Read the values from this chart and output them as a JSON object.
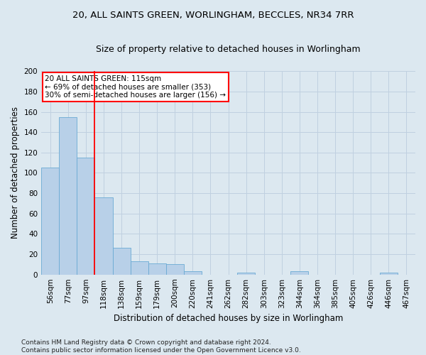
{
  "title_line1": "20, ALL SAINTS GREEN, WORLINGHAM, BECCLES, NR34 7RR",
  "title_line2": "Size of property relative to detached houses in Worlingham",
  "xlabel": "Distribution of detached houses by size in Worlingham",
  "ylabel": "Number of detached properties",
  "categories": [
    "56sqm",
    "77sqm",
    "97sqm",
    "118sqm",
    "138sqm",
    "159sqm",
    "179sqm",
    "200sqm",
    "220sqm",
    "241sqm",
    "262sqm",
    "282sqm",
    "303sqm",
    "323sqm",
    "344sqm",
    "364sqm",
    "385sqm",
    "405sqm",
    "426sqm",
    "446sqm",
    "467sqm"
  ],
  "values": [
    105,
    155,
    115,
    76,
    26,
    13,
    11,
    10,
    3,
    0,
    0,
    2,
    0,
    0,
    3,
    0,
    0,
    0,
    0,
    2,
    0
  ],
  "bar_color": "#b8d0e8",
  "bar_edge_color": "#6aaad4",
  "grid_color": "#c0d0e0",
  "background_color": "#dce8f0",
  "vline_color": "red",
  "vline_pos": 2.5,
  "annotation_text": "20 ALL SAINTS GREEN: 115sqm\n← 69% of detached houses are smaller (353)\n30% of semi-detached houses are larger (156) →",
  "annotation_box_facecolor": "white",
  "annotation_box_edgecolor": "red",
  "ylim": [
    0,
    200
  ],
  "yticks": [
    0,
    20,
    40,
    60,
    80,
    100,
    120,
    140,
    160,
    180,
    200
  ],
  "footnote": "Contains HM Land Registry data © Crown copyright and database right 2024.\nContains public sector information licensed under the Open Government Licence v3.0.",
  "title_fontsize": 9.5,
  "subtitle_fontsize": 9,
  "axis_label_fontsize": 8.5,
  "tick_fontsize": 7.5,
  "annotation_fontsize": 7.5,
  "footnote_fontsize": 6.5
}
